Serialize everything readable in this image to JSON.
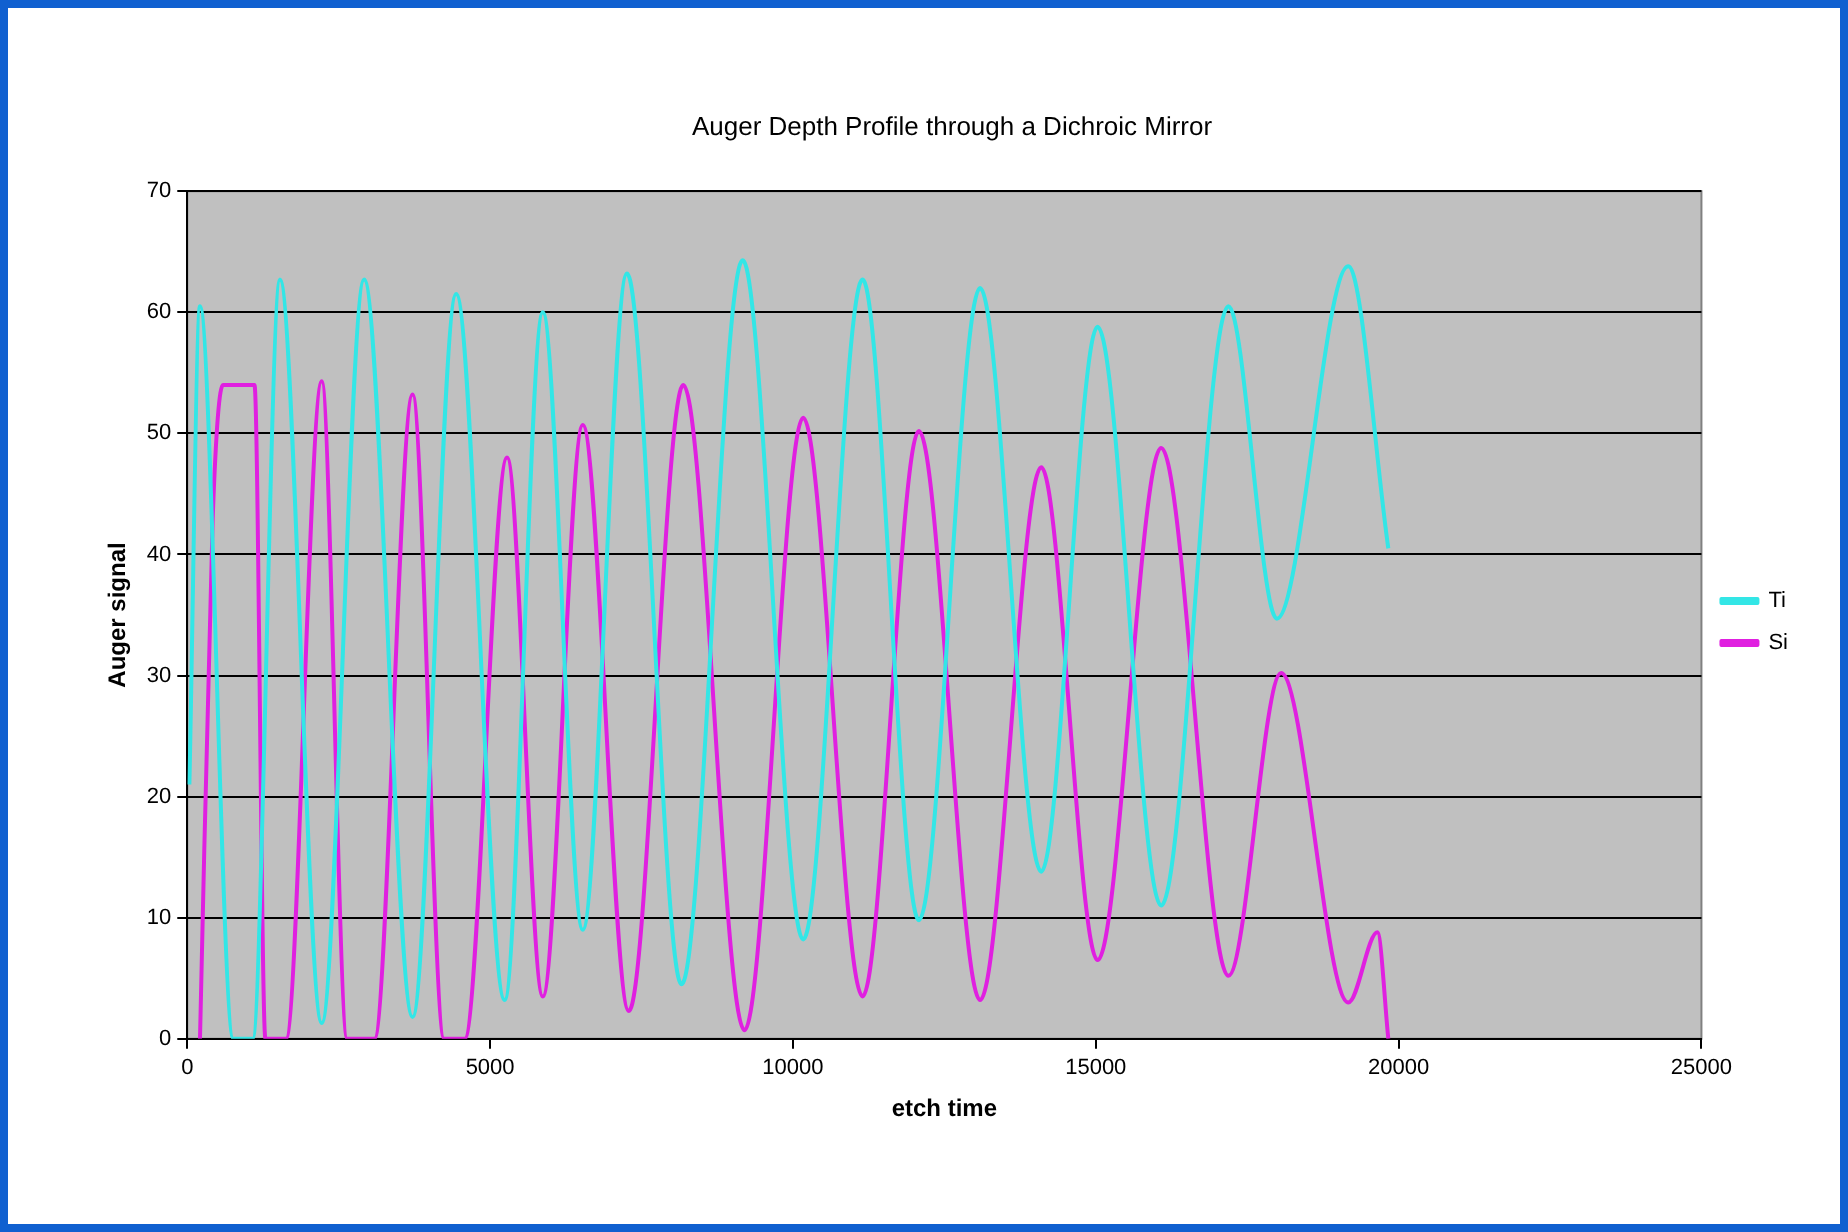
{
  "chart_data": {
    "type": "line",
    "title": "Auger Depth Profile through a Dichroic Mirror",
    "xlabel": "etch time",
    "ylabel": "Auger signal",
    "xlim": [
      0,
      25000
    ],
    "xticks": [
      0,
      5000,
      10000,
      15000,
      20000,
      25000
    ],
    "ylim": [
      0,
      70
    ],
    "yticks": [
      0,
      10,
      20,
      30,
      40,
      50,
      60,
      70
    ],
    "grid": "y",
    "legend": "right",
    "marker": "none",
    "line_style": "solid",
    "series": [
      {
        "name": "Ti",
        "color": "#33e6e6",
        "x": [
          35,
          210,
          760,
          1080,
          1530,
          2220,
          2920,
          3720,
          4440,
          5240,
          5870,
          6530,
          7260,
          8160,
          9170,
          10170,
          11150,
          12080,
          13090,
          14100,
          15030,
          16080,
          17190,
          17990,
          19170,
          19830
        ],
        "values": [
          21,
          60.5,
          0,
          0,
          62.7,
          1.3,
          62.7,
          1.8,
          61.5,
          3.2,
          60,
          9,
          63.2,
          4.5,
          64.3,
          8.2,
          62.7,
          9.8,
          62,
          13.8,
          58.8,
          11,
          60.5,
          34.7,
          63.8,
          40.5
        ]
      },
      {
        "name": "Si",
        "color": "#e020e0",
        "x": [
          210,
          420,
          590,
          1110,
          1290,
          1630,
          2220,
          2640,
          3090,
          3720,
          4240,
          4580,
          5280,
          5870,
          6530,
          7290,
          8190,
          9200,
          10170,
          11150,
          12080,
          13090,
          14100,
          15030,
          16080,
          17190,
          18060,
          19170,
          19650,
          19830
        ],
        "values": [
          0,
          43,
          54,
          54,
          0,
          0,
          54.3,
          0,
          0,
          53.2,
          0,
          0,
          48,
          3.5,
          50.7,
          2.3,
          54,
          0.7,
          51.3,
          3.5,
          50.2,
          3.2,
          47.2,
          6.5,
          48.8,
          5.2,
          30.2,
          3,
          8.8,
          0
        ]
      }
    ]
  }
}
